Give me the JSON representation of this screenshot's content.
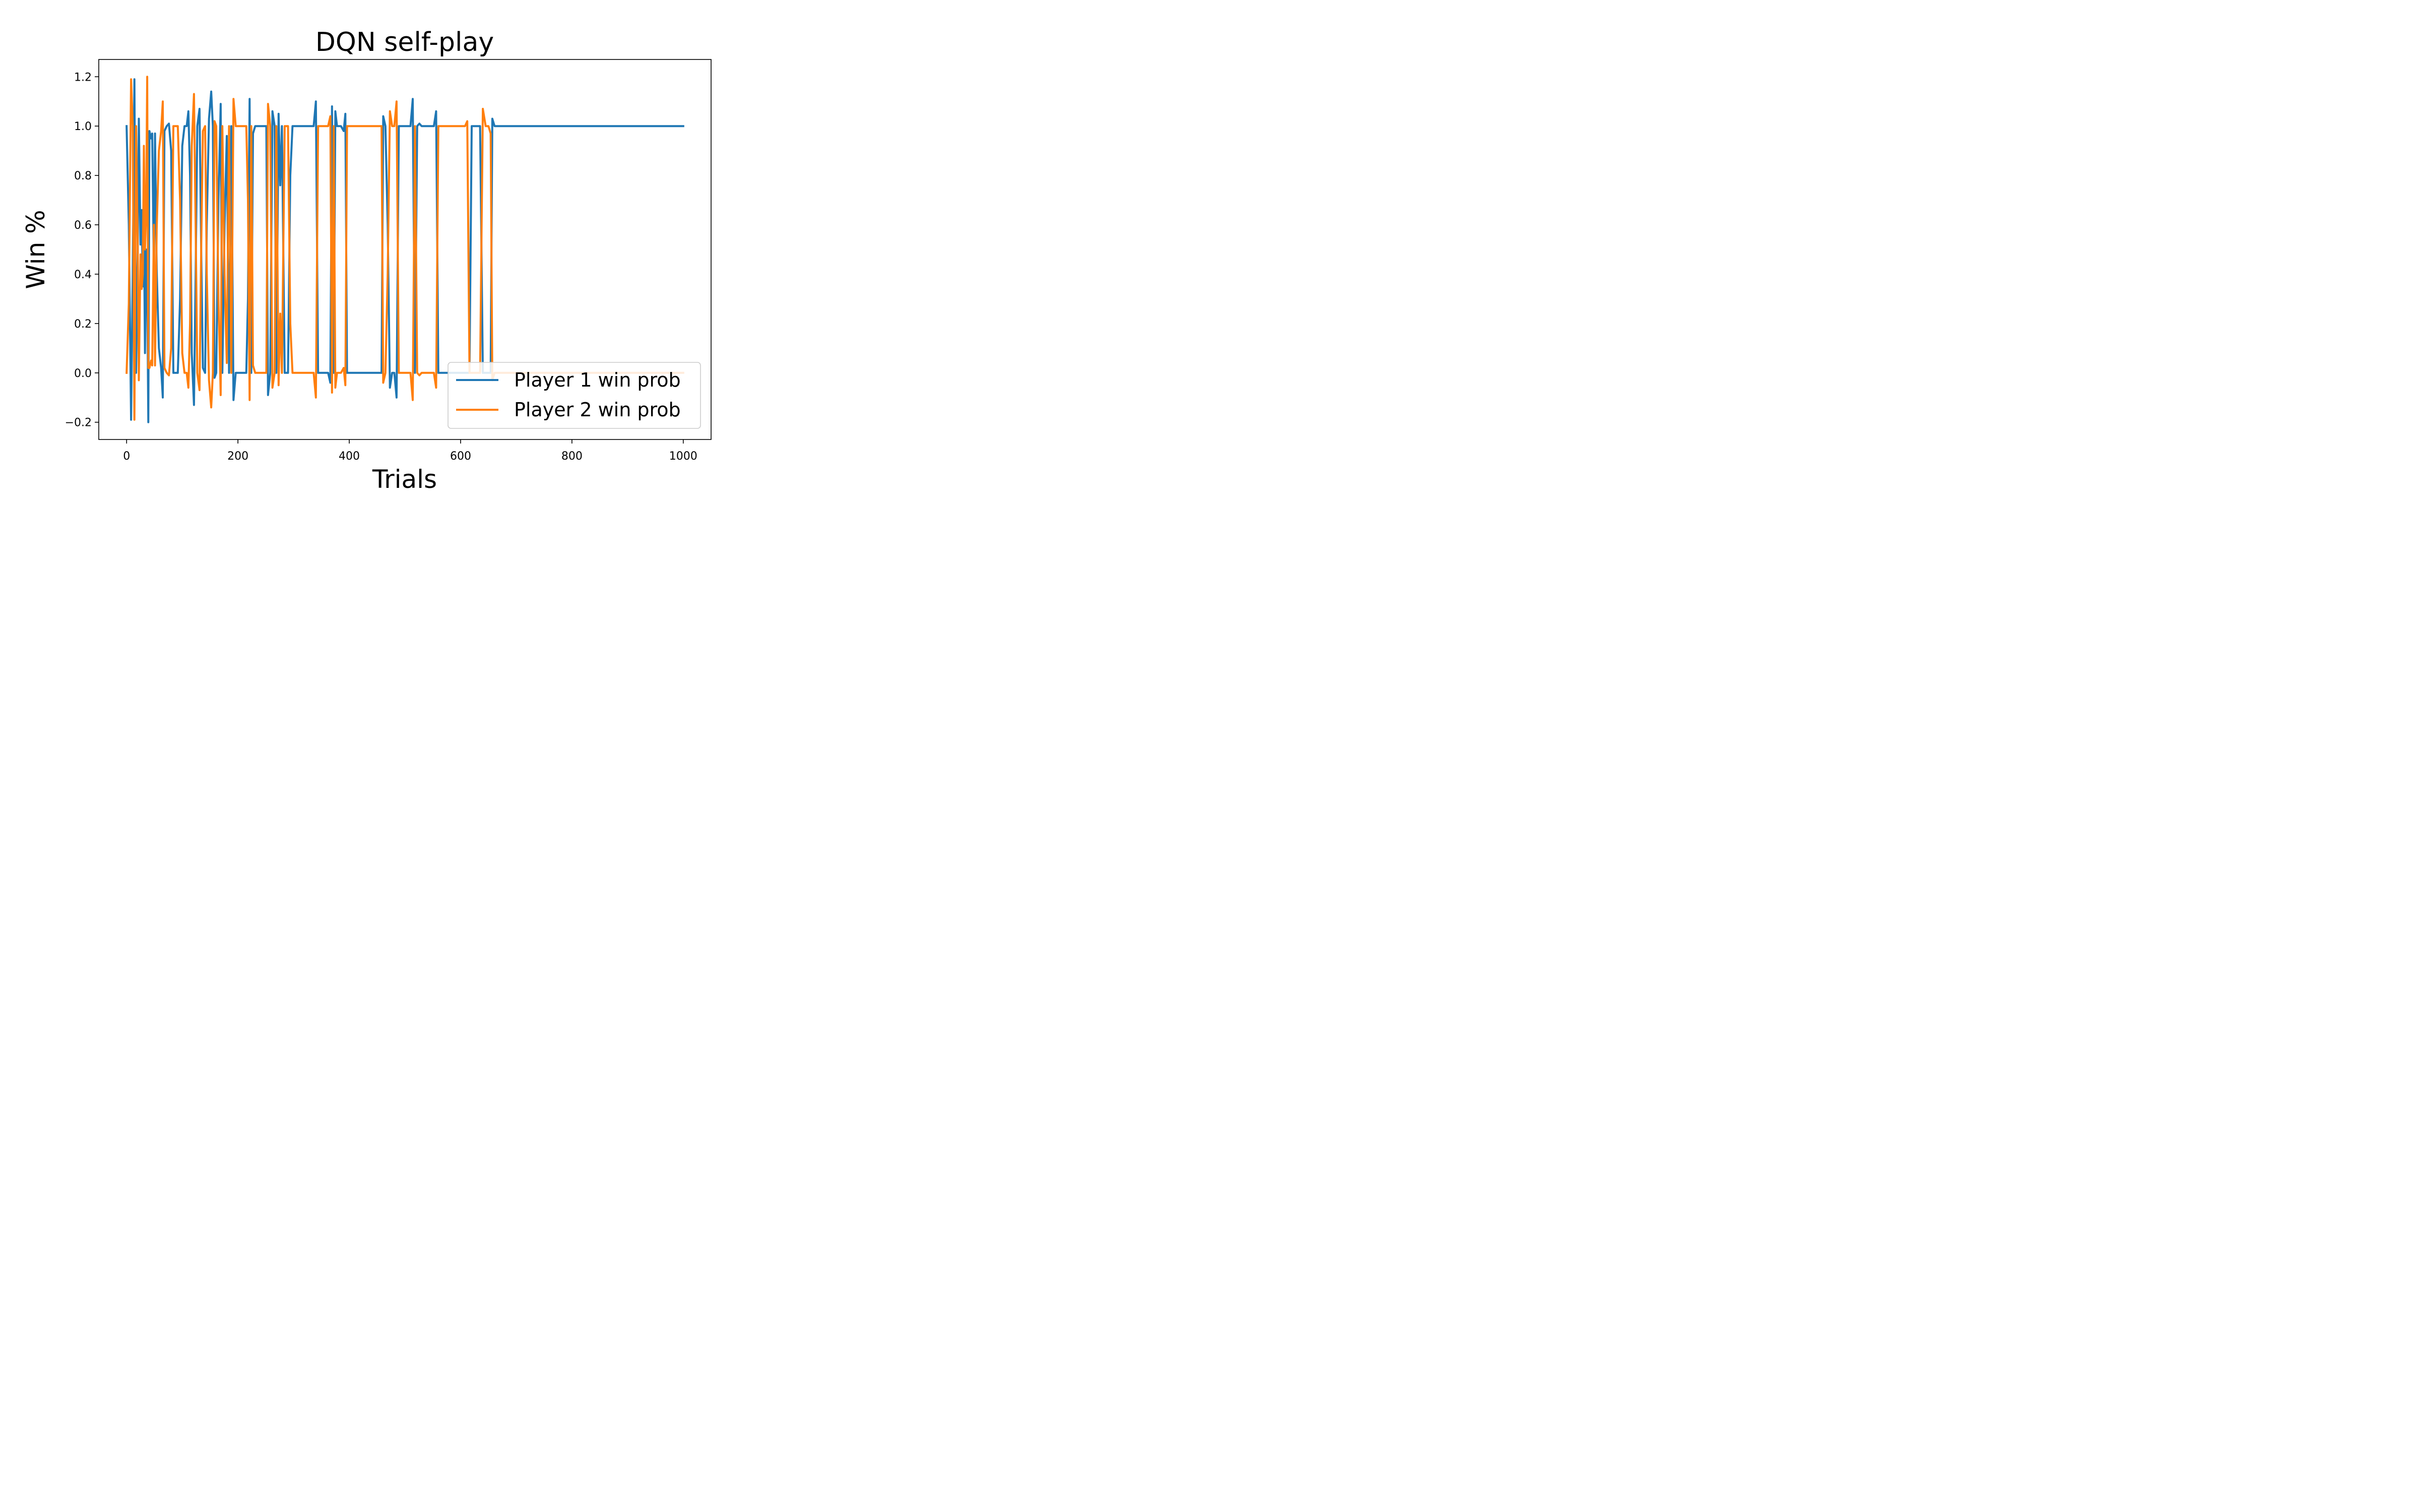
{
  "chart_data": {
    "type": "line",
    "title": "DQN self-play",
    "xlabel": "Trials",
    "ylabel": "Win %",
    "xlim": [
      -50,
      1050
    ],
    "ylim": [
      -0.27,
      1.27
    ],
    "xticks": [
      0,
      200,
      400,
      600,
      800,
      1000
    ],
    "xtick_labels": [
      "0",
      "200",
      "400",
      "600",
      "800",
      "1000"
    ],
    "yticks": [
      -0.2,
      0.0,
      0.2,
      0.4,
      0.6,
      0.8,
      1.0,
      1.2
    ],
    "ytick_labels": [
      "−0.2",
      "0.0",
      "0.2",
      "0.4",
      "0.6",
      "0.8",
      "1.0",
      "1.2"
    ],
    "grid": false,
    "legend_position": "bottom-right",
    "series": [
      {
        "name": "Player 1 win prob",
        "color": "#1f77b4",
        "points": [
          [
            0,
            1.0
          ],
          [
            4,
            0.6
          ],
          [
            8,
            -0.19
          ],
          [
            11,
            0.4
          ],
          [
            14,
            1.19
          ],
          [
            17,
            0.0
          ],
          [
            20,
            0.5
          ],
          [
            22,
            1.03
          ],
          [
            25,
            0.52
          ],
          [
            27,
            0.66
          ],
          [
            29,
            0.35
          ],
          [
            31,
            0.6
          ],
          [
            33,
            0.08
          ],
          [
            35,
            0.5
          ],
          [
            37,
            0.36
          ],
          [
            39,
            -0.2
          ],
          [
            41,
            0.98
          ],
          [
            44,
            0.95
          ],
          [
            46,
            0.97
          ],
          [
            49,
            0.4
          ],
          [
            51,
            0.97
          ],
          [
            54,
            0.42
          ],
          [
            58,
            0.1
          ],
          [
            62,
            0.02
          ],
          [
            65,
            -0.1
          ],
          [
            68,
            0.98
          ],
          [
            72,
            1.0
          ],
          [
            76,
            1.01
          ],
          [
            80,
            0.9
          ],
          [
            84,
            0.0
          ],
          [
            88,
            0.0
          ],
          [
            92,
            0.0
          ],
          [
            96,
            0.3
          ],
          [
            100,
            0.92
          ],
          [
            104,
            1.0
          ],
          [
            108,
            1.0
          ],
          [
            111,
            1.06
          ],
          [
            114,
            0.8
          ],
          [
            117,
            0.08
          ],
          [
            121,
            -0.13
          ],
          [
            124,
            0.4
          ],
          [
            127,
            1.0
          ],
          [
            131,
            1.07
          ],
          [
            134,
            0.5
          ],
          [
            137,
            0.02
          ],
          [
            141,
            0.0
          ],
          [
            144,
            0.6
          ],
          [
            148,
            1.03
          ],
          [
            152,
            1.14
          ],
          [
            155,
            1.0
          ],
          [
            158,
            -0.02
          ],
          [
            161,
            0.0
          ],
          [
            165,
            0.7
          ],
          [
            169,
            1.09
          ],
          [
            172,
            0.0
          ],
          [
            176,
            0.6
          ],
          [
            180,
            0.96
          ],
          [
            184,
            0.0
          ],
          [
            188,
            1.0
          ],
          [
            192,
            -0.11
          ],
          [
            196,
            0.0
          ],
          [
            200,
            0.0
          ],
          [
            205,
            0.0
          ],
          [
            210,
            0.0
          ],
          [
            215,
            0.0
          ],
          [
            218,
            0.3
          ],
          [
            221,
            1.11
          ],
          [
            224,
            0.0
          ],
          [
            227,
            0.97
          ],
          [
            231,
            1.0
          ],
          [
            235,
            1.0
          ],
          [
            240,
            1.0
          ],
          [
            245,
            1.0
          ],
          [
            248,
            1.0
          ],
          [
            251,
            1.0
          ],
          [
            254,
            -0.09
          ],
          [
            258,
            0.0
          ],
          [
            262,
            1.06
          ],
          [
            266,
            1.0
          ],
          [
            269,
            0.0
          ],
          [
            273,
            1.05
          ],
          [
            276,
            0.76
          ],
          [
            279,
            1.0
          ],
          [
            284,
            0.0
          ],
          [
            290,
            0.0
          ],
          [
            294,
            0.8
          ],
          [
            298,
            1.0
          ],
          [
            310,
            1.0
          ],
          [
            320,
            1.0
          ],
          [
            330,
            1.0
          ],
          [
            336,
            1.0
          ],
          [
            340,
            1.1
          ],
          [
            344,
            0.0
          ],
          [
            355,
            0.0
          ],
          [
            362,
            0.0
          ],
          [
            366,
            -0.04
          ],
          [
            369,
            1.08
          ],
          [
            372,
            0.0
          ],
          [
            375,
            1.06
          ],
          [
            378,
            1.0
          ],
          [
            385,
            1.0
          ],
          [
            390,
            0.98
          ],
          [
            393,
            1.05
          ],
          [
            396,
            0.0
          ],
          [
            405,
            0.0
          ],
          [
            420,
            0.0
          ],
          [
            440,
            0.0
          ],
          [
            455,
            0.0
          ],
          [
            458,
            0.0
          ],
          [
            461,
            1.04
          ],
          [
            465,
            1.0
          ],
          [
            469,
            0.6
          ],
          [
            473,
            -0.06
          ],
          [
            477,
            0.0
          ],
          [
            481,
            0.0
          ],
          [
            485,
            -0.1
          ],
          [
            489,
            1.0
          ],
          [
            495,
            1.0
          ],
          [
            505,
            1.0
          ],
          [
            510,
            1.0
          ],
          [
            514,
            1.11
          ],
          [
            518,
            0.0
          ],
          [
            522,
            1.0
          ],
          [
            526,
            1.01
          ],
          [
            530,
            1.0
          ],
          [
            540,
            1.0
          ],
          [
            548,
            1.0
          ],
          [
            552,
            1.0
          ],
          [
            556,
            1.06
          ],
          [
            560,
            0.0
          ],
          [
            570,
            0.0
          ],
          [
            590,
            0.0
          ],
          [
            608,
            0.0
          ],
          [
            612,
            0.0
          ],
          [
            616,
            0.0
          ],
          [
            620,
            1.0
          ],
          [
            625,
            1.0
          ],
          [
            635,
            1.0
          ],
          [
            640,
            0.0
          ],
          [
            645,
            0.0
          ],
          [
            650,
            0.0
          ],
          [
            654,
            0.0
          ],
          [
            657,
            1.03
          ],
          [
            661,
            1.0
          ],
          [
            665,
            1.0
          ],
          [
            700,
            1.0
          ],
          [
            800,
            1.0
          ],
          [
            900,
            1.0
          ],
          [
            1000,
            1.0
          ]
        ]
      },
      {
        "name": "Player 2 win prob",
        "color": "#ff7f0e",
        "points": [
          [
            0,
            0.0
          ],
          [
            4,
            0.28
          ],
          [
            8,
            1.19
          ],
          [
            11,
            1.0
          ],
          [
            14,
            -0.19
          ],
          [
            17,
            1.0
          ],
          [
            20,
            0.5
          ],
          [
            22,
            -0.03
          ],
          [
            25,
            0.48
          ],
          [
            27,
            0.34
          ],
          [
            29,
            0.4
          ],
          [
            31,
            0.92
          ],
          [
            33,
            0.5
          ],
          [
            35,
            0.64
          ],
          [
            37,
            1.2
          ],
          [
            39,
            0.02
          ],
          [
            41,
            0.02
          ],
          [
            44,
            0.05
          ],
          [
            46,
            0.03
          ],
          [
            49,
            0.6
          ],
          [
            51,
            0.03
          ],
          [
            54,
            0.58
          ],
          [
            58,
            0.9
          ],
          [
            62,
            0.98
          ],
          [
            65,
            1.1
          ],
          [
            68,
            0.02
          ],
          [
            72,
            0.0
          ],
          [
            76,
            -0.01
          ],
          [
            80,
            0.1
          ],
          [
            84,
            1.0
          ],
          [
            88,
            1.0
          ],
          [
            92,
            1.0
          ],
          [
            96,
            0.7
          ],
          [
            100,
            0.08
          ],
          [
            104,
            0.0
          ],
          [
            108,
            0.0
          ],
          [
            111,
            -0.06
          ],
          [
            114,
            0.2
          ],
          [
            117,
            0.92
          ],
          [
            121,
            1.13
          ],
          [
            124,
            0.6
          ],
          [
            127,
            0.0
          ],
          [
            131,
            -0.07
          ],
          [
            134,
            0.5
          ],
          [
            137,
            0.98
          ],
          [
            141,
            1.0
          ],
          [
            144,
            0.4
          ],
          [
            148,
            -0.03
          ],
          [
            152,
            -0.14
          ],
          [
            155,
            0.0
          ],
          [
            158,
            1.02
          ],
          [
            161,
            1.0
          ],
          [
            165,
            0.3
          ],
          [
            169,
            -0.09
          ],
          [
            172,
            1.0
          ],
          [
            176,
            0.4
          ],
          [
            180,
            0.04
          ],
          [
            184,
            1.0
          ],
          [
            188,
            0.0
          ],
          [
            192,
            1.11
          ],
          [
            196,
            1.0
          ],
          [
            200,
            1.0
          ],
          [
            205,
            1.0
          ],
          [
            210,
            1.0
          ],
          [
            215,
            1.0
          ],
          [
            218,
            0.7
          ],
          [
            221,
            -0.11
          ],
          [
            224,
            1.0
          ],
          [
            227,
            0.03
          ],
          [
            231,
            0.0
          ],
          [
            235,
            0.0
          ],
          [
            240,
            0.0
          ],
          [
            245,
            0.0
          ],
          [
            248,
            0.0
          ],
          [
            251,
            0.0
          ],
          [
            254,
            1.09
          ],
          [
            258,
            1.0
          ],
          [
            262,
            -0.06
          ],
          [
            266,
            0.0
          ],
          [
            269,
            1.0
          ],
          [
            273,
            -0.05
          ],
          [
            276,
            0.24
          ],
          [
            279,
            0.0
          ],
          [
            284,
            1.0
          ],
          [
            290,
            1.0
          ],
          [
            294,
            0.2
          ],
          [
            298,
            0.0
          ],
          [
            310,
            0.0
          ],
          [
            320,
            0.0
          ],
          [
            330,
            0.0
          ],
          [
            336,
            0.0
          ],
          [
            340,
            -0.1
          ],
          [
            344,
            1.0
          ],
          [
            355,
            1.0
          ],
          [
            362,
            1.0
          ],
          [
            366,
            1.04
          ],
          [
            369,
            -0.08
          ],
          [
            372,
            1.0
          ],
          [
            375,
            -0.06
          ],
          [
            378,
            0.0
          ],
          [
            385,
            0.0
          ],
          [
            390,
            0.02
          ],
          [
            393,
            -0.05
          ],
          [
            396,
            1.0
          ],
          [
            405,
            1.0
          ],
          [
            420,
            1.0
          ],
          [
            440,
            1.0
          ],
          [
            455,
            1.0
          ],
          [
            458,
            1.0
          ],
          [
            461,
            -0.04
          ],
          [
            465,
            0.0
          ],
          [
            469,
            0.4
          ],
          [
            473,
            1.06
          ],
          [
            477,
            1.0
          ],
          [
            481,
            1.0
          ],
          [
            485,
            1.1
          ],
          [
            489,
            0.0
          ],
          [
            495,
            0.0
          ],
          [
            505,
            0.0
          ],
          [
            510,
            0.0
          ],
          [
            514,
            -0.11
          ],
          [
            518,
            1.0
          ],
          [
            522,
            0.0
          ],
          [
            526,
            -0.01
          ],
          [
            530,
            0.0
          ],
          [
            540,
            0.0
          ],
          [
            548,
            0.0
          ],
          [
            552,
            0.0
          ],
          [
            556,
            -0.06
          ],
          [
            560,
            1.0
          ],
          [
            570,
            1.0
          ],
          [
            590,
            1.0
          ],
          [
            608,
            1.0
          ],
          [
            612,
            1.02
          ],
          [
            616,
            0.0
          ],
          [
            620,
            0.0
          ],
          [
            625,
            0.0
          ],
          [
            635,
            0.0
          ],
          [
            640,
            1.07
          ],
          [
            645,
            1.0
          ],
          [
            650,
            1.0
          ],
          [
            654,
            0.97
          ],
          [
            657,
            -0.03
          ],
          [
            661,
            0.0
          ],
          [
            665,
            0.0
          ],
          [
            700,
            0.0
          ],
          [
            800,
            0.0
          ],
          [
            900,
            0.0
          ],
          [
            1000,
            0.0
          ]
        ]
      }
    ]
  }
}
